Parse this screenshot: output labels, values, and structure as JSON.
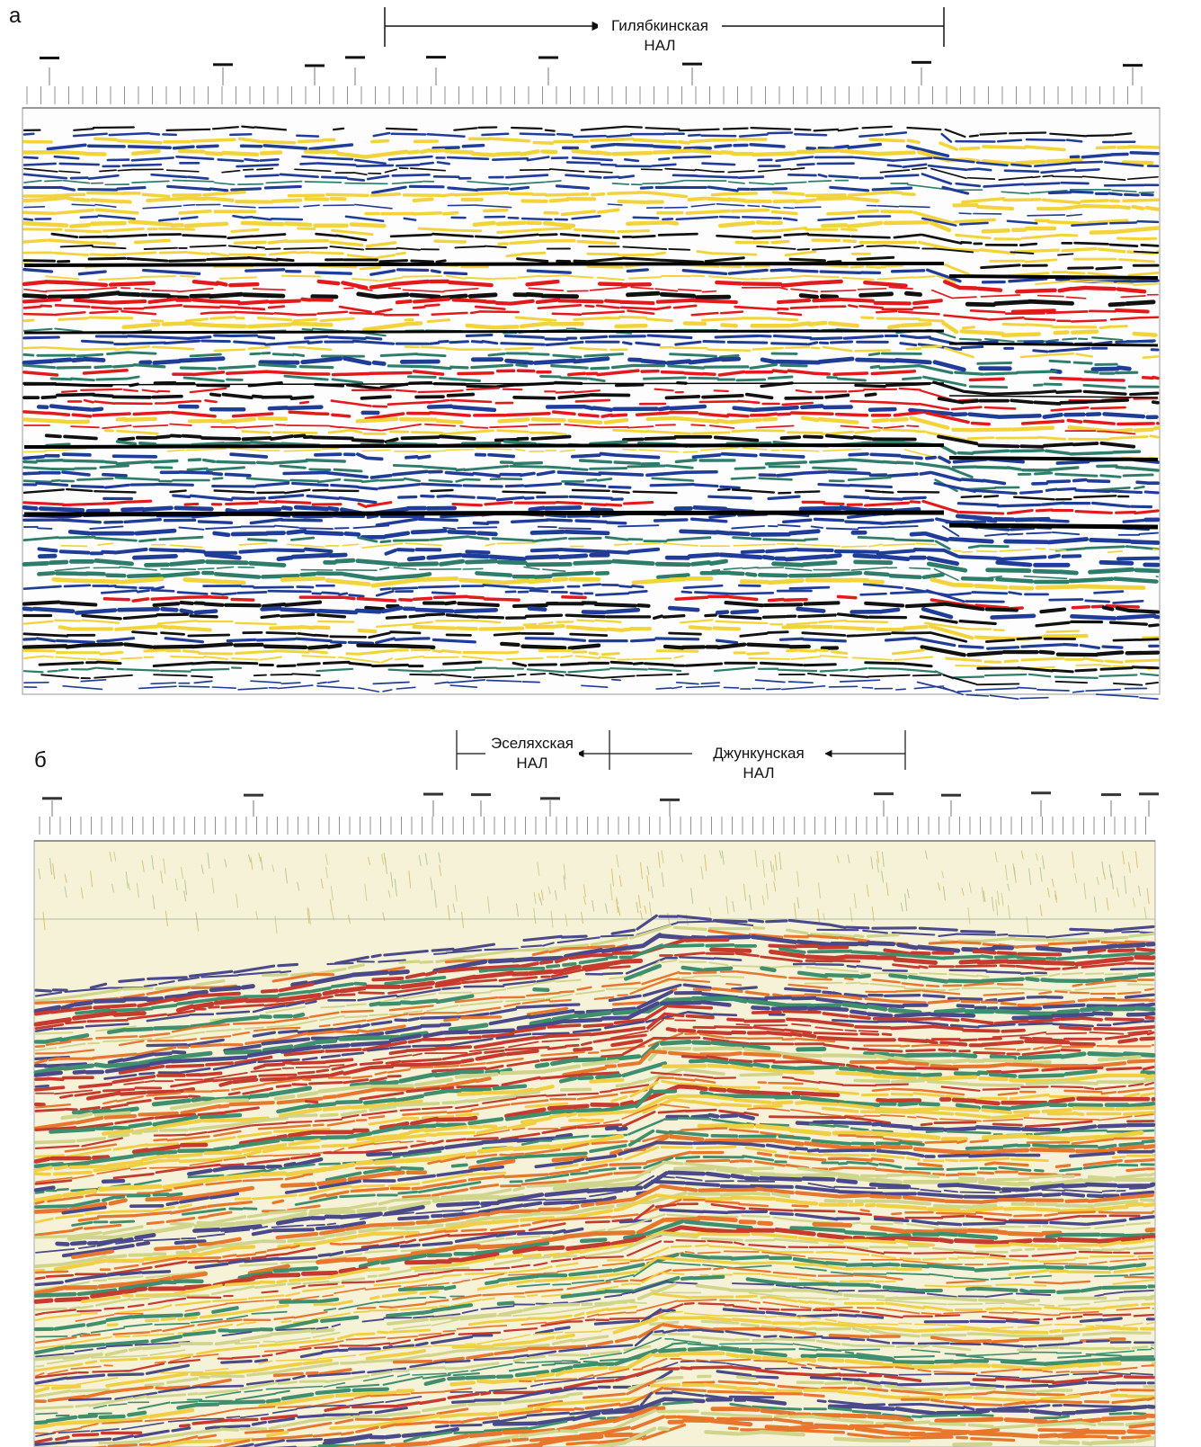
{
  "panel_a": {
    "label": "а",
    "zone": "Гилябкинская НАЛ"
  },
  "panel_b": {
    "label": "б",
    "zones": [
      "Эселяхская НАЛ",
      "Джункунская НАЛ"
    ]
  }
}
